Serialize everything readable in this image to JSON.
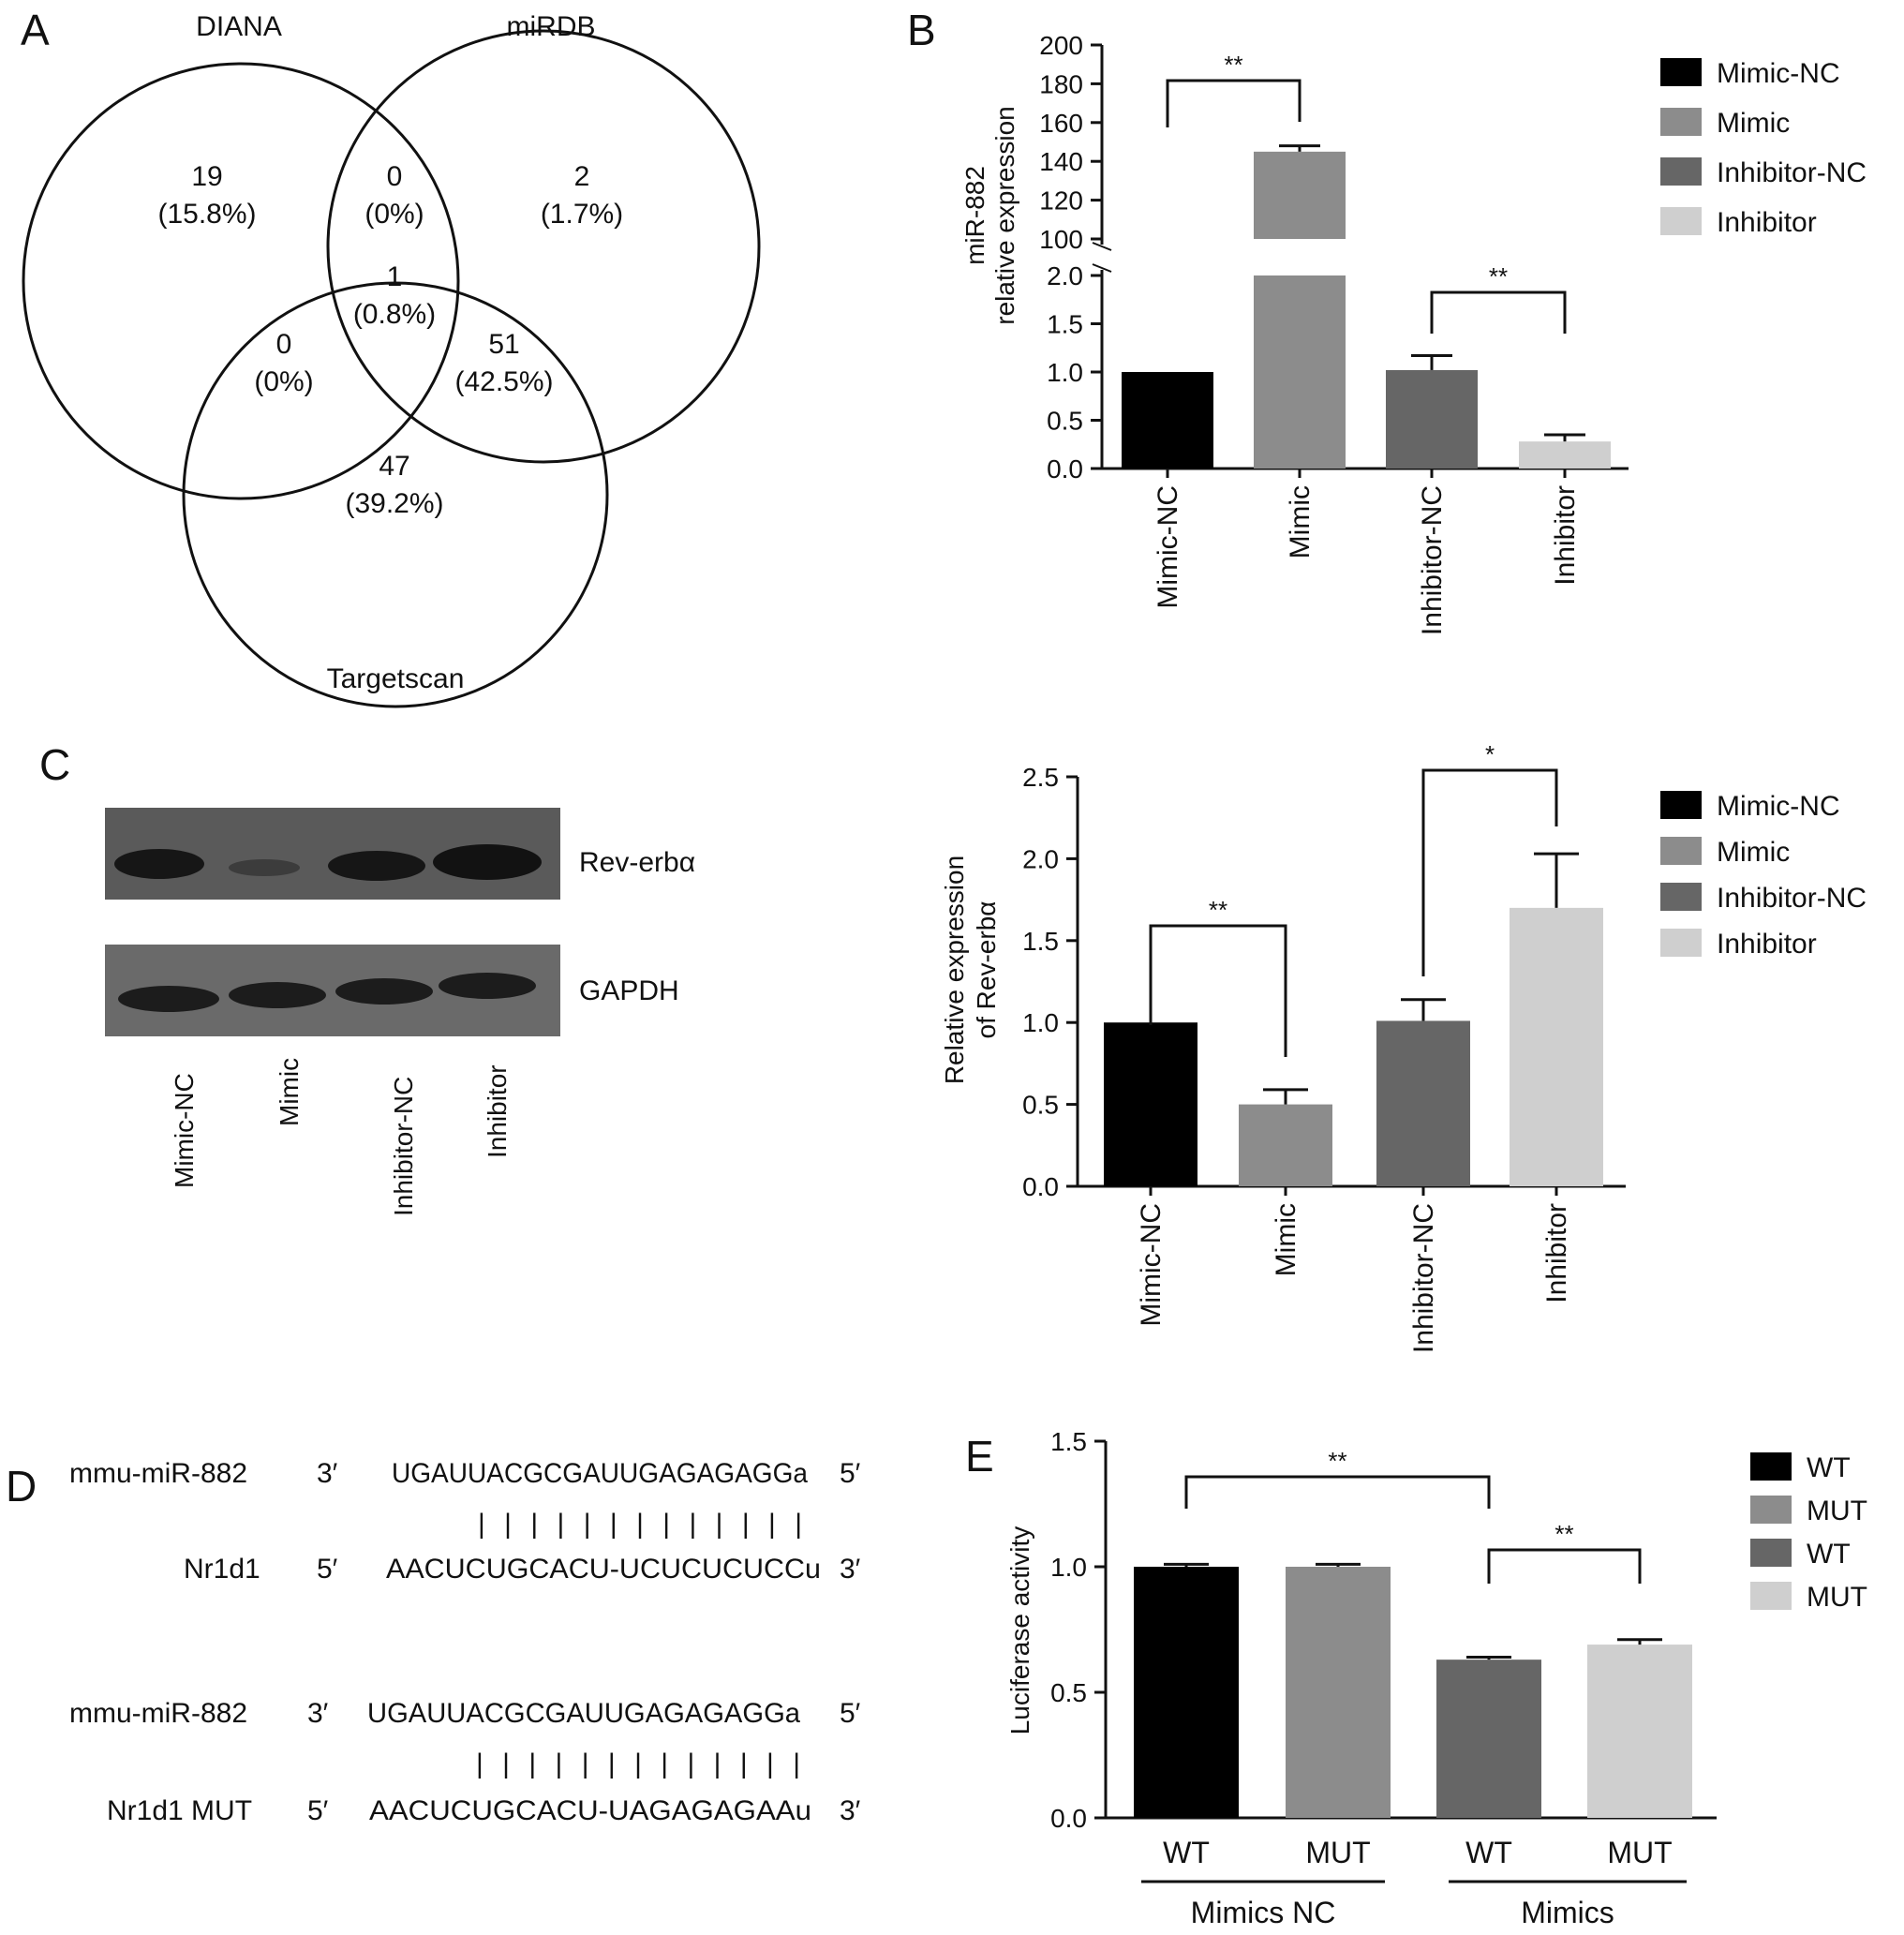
{
  "panels": {
    "a": {
      "letter": "A",
      "sets": [
        "DIANA",
        "miRDB",
        "Targetscan"
      ],
      "regions": [
        {
          "id": "diana-only",
          "count": "19",
          "pct": "(15.8%)"
        },
        {
          "id": "diana-mirdb",
          "count": "0",
          "pct": "(0%)"
        },
        {
          "id": "mirdb-only",
          "count": "2",
          "pct": "(1.7%)"
        },
        {
          "id": "all-three",
          "count": "1",
          "pct": "(0.8%)"
        },
        {
          "id": "diana-targetscan",
          "count": "0",
          "pct": "(0%)"
        },
        {
          "id": "mirdb-targetscan",
          "count": "51",
          "pct": "(42.5%)"
        },
        {
          "id": "targetscan-only",
          "count": "47",
          "pct": "(39.2%)"
        }
      ]
    },
    "b": {
      "letter": "B"
    },
    "c": {
      "letter": "C",
      "blot_labels": [
        "Rev-erbα",
        "GAPDH"
      ],
      "lanes": [
        "Mimic-NC",
        "Mimic",
        "Inhibitor-NC",
        "Inhibitor"
      ]
    },
    "d": {
      "letter": "D",
      "alignments": [
        {
          "top_name": "mmu-miR-882",
          "top_end5": "3′",
          "top_seq": "UGAUUACGCGAUUGAGAGAGGa",
          "top_end3": "5′",
          "pairs": "| | |   | |   | | | | | | | |",
          "bottom_name": "Nr1d1",
          "bottom_end5": "5′",
          "bottom_seq": "AACUCUGCACU-UCUCUCUCCu",
          "bottom_end3": "3′"
        },
        {
          "top_name": "mmu-miR-882",
          "top_end5": "3′",
          "top_seq": "UGAUUACGCGAUUGAGAGAGGa",
          "top_end3": "5′",
          "pairs": "| | |   | |   | | | | | | | |",
          "bottom_name": "Nr1d1 MUT",
          "bottom_end5": "5′",
          "bottom_seq": "AACUCUGCACU-UAGAGAGAAu",
          "bottom_end3": "3′"
        }
      ]
    },
    "e": {
      "letter": "E"
    }
  },
  "colors": {
    "mimic_nc": "#000000",
    "mimic": "#8c8c8c",
    "inhibitor_nc": "#666666",
    "inhibitor": "#cfcfcf",
    "wt_nc": "#000000",
    "mut_nc": "#8c8c8c",
    "wt_mimics": "#666666",
    "mut_mimics": "#cfcfcf"
  },
  "chart_data": [
    {
      "id": "b",
      "type": "bar",
      "ylabel": [
        "miR-882",
        "relative expression"
      ],
      "categories": [
        "Mimic-NC",
        "Mimic",
        "Inhibitor-NC",
        "Inhibitor"
      ],
      "values": [
        1.0,
        145,
        1.02,
        0.28
      ],
      "errors": [
        0,
        3,
        0.15,
        0.07
      ],
      "broken_axis": {
        "lower": [
          0,
          2.0
        ],
        "upper": [
          100,
          200
        ]
      },
      "yticks_lower": [
        "0.0",
        "0.5",
        "1.0",
        "1.5",
        "2.0"
      ],
      "yticks_upper": [
        "100",
        "120",
        "140",
        "160",
        "180",
        "200"
      ],
      "legend": [
        "Mimic-NC",
        "Mimic",
        "Inhibitor-NC",
        "Inhibitor"
      ],
      "legend_position": "right",
      "significance": [
        {
          "from": 0,
          "to": 1,
          "label": "**"
        },
        {
          "from": 2,
          "to": 3,
          "label": "**"
        }
      ]
    },
    {
      "id": "c",
      "type": "bar",
      "ylabel": [
        "Relative expression",
        "of Rev-erbα"
      ],
      "categories": [
        "Mimic-NC",
        "Mimic",
        "Inhibitor-NC",
        "Inhibitor"
      ],
      "values": [
        1.0,
        0.5,
        1.01,
        1.7
      ],
      "errors": [
        0,
        0.09,
        0.13,
        0.33
      ],
      "ylim": [
        0,
        2.5
      ],
      "yticks": [
        "0.0",
        "0.5",
        "1.0",
        "1.5",
        "2.0",
        "2.5"
      ],
      "legend": [
        "Mimic-NC",
        "Mimic",
        "Inhibitor-NC",
        "Inhibitor"
      ],
      "legend_position": "right",
      "significance": [
        {
          "from": 0,
          "to": 1,
          "label": "**"
        },
        {
          "from": 2,
          "to": 3,
          "label": "*"
        }
      ]
    },
    {
      "id": "e",
      "type": "bar",
      "ylabel": "Luciferase activity",
      "categories": [
        "WT",
        "MUT",
        "WT",
        "MUT"
      ],
      "groups": [
        "Mimics NC",
        "Mimics"
      ],
      "values": [
        1.0,
        1.0,
        0.63,
        0.69
      ],
      "errors": [
        0.01,
        0.01,
        0.01,
        0.02
      ],
      "ylim": [
        0,
        1.5
      ],
      "yticks": [
        "0.0",
        "0.5",
        "1.0",
        "1.5"
      ],
      "legend": [
        "WT",
        "MUT",
        "WT",
        "MUT"
      ],
      "legend_position": "right",
      "significance": [
        {
          "from": 0,
          "to": 2,
          "label": "**"
        },
        {
          "from": 2,
          "to": 3,
          "label": "**"
        }
      ]
    }
  ]
}
